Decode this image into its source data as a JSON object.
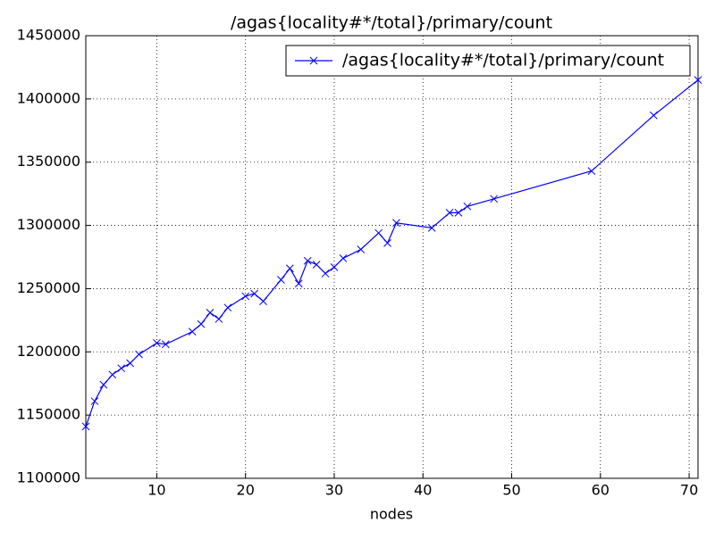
{
  "chart_data": {
    "type": "line",
    "title": "/agas{locality#*/total}/primary/count",
    "x_label": "nodes",
    "x": [
      2,
      3,
      4,
      5,
      6,
      7,
      8,
      10,
      11,
      14,
      15,
      16,
      17,
      18,
      20,
      21,
      22,
      24,
      25,
      26,
      27,
      28,
      29,
      30,
      31,
      33,
      35,
      36,
      37,
      41,
      43,
      44,
      45,
      48,
      59,
      66,
      71
    ],
    "series": [
      {
        "name": "/agas{locality#*/total}/primary/count",
        "color": "#0000ff",
        "values": [
          1141000,
          1161000,
          1174000,
          1182000,
          1187000,
          1191000,
          1198000,
          1207000,
          1206000,
          1216000,
          1222000,
          1231000,
          1226000,
          1235000,
          1244000,
          1246000,
          1240000,
          1257000,
          1266000,
          1254000,
          1272000,
          1269000,
          1262000,
          1267000,
          1274000,
          1281000,
          1294000,
          1286000,
          1302000,
          1298000,
          1310000,
          1310000,
          1315000,
          1321000,
          1343000,
          1387000,
          1415000
        ]
      }
    ],
    "xlim": [
      2,
      71
    ],
    "xticks": [
      10,
      20,
      30,
      40,
      50,
      60,
      70
    ],
    "ylim": [
      1100000,
      1450000
    ],
    "yticks": [
      1100000,
      1150000,
      1200000,
      1250000,
      1300000,
      1350000,
      1400000,
      1450000
    ],
    "grid": true,
    "legend": "upper right"
  }
}
